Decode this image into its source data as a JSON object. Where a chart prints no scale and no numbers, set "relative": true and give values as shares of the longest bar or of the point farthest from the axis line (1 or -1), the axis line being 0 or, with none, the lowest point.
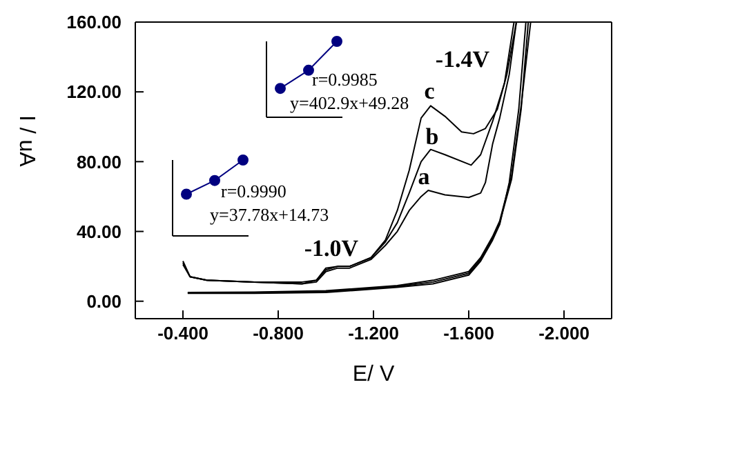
{
  "chart_data": [
    {
      "type": "line",
      "xlabel": "E/  V",
      "ylabel": "I  /   uA",
      "xlim": [
        -0.2,
        -2.2
      ],
      "ylim": [
        -10,
        160
      ],
      "xticks": [
        {
          "value": -0.4,
          "label": "-0.400"
        },
        {
          "value": -0.8,
          "label": "-0.800"
        },
        {
          "value": -1.2,
          "label": "-1.200"
        },
        {
          "value": -1.6,
          "label": "-1.600"
        },
        {
          "value": -2.0,
          "label": "-2.000"
        }
      ],
      "yticks": [
        {
          "value": 0,
          "label": "0.00"
        },
        {
          "value": 40,
          "label": "40.00"
        },
        {
          "value": 80,
          "label": "80.00"
        },
        {
          "value": 120,
          "label": "120.00"
        },
        {
          "value": 160,
          "label": "160.00"
        }
      ],
      "legend": false,
      "marker": "none",
      "line_style": "solid",
      "series": [
        {
          "color": "#000000",
          "x": [
            -0.4,
            -0.43,
            -0.5,
            -0.7,
            -0.9,
            -0.96,
            -1.0,
            -1.05,
            -1.1,
            -1.19,
            -1.25,
            -1.3,
            -1.35,
            -1.4,
            -1.43,
            -1.5,
            -1.6,
            -1.65,
            -1.67,
            -1.7,
            -1.73,
            -1.77,
            -1.8,
            -1.84,
            -1.81,
            -1.77,
            -1.73,
            -1.7,
            -1.65,
            -1.6,
            -1.45,
            -1.3,
            -1.0,
            -0.7,
            -0.42
          ],
          "values": [
            21,
            14,
            12,
            11,
            10,
            11,
            17,
            19,
            19,
            24,
            32,
            40,
            52,
            60,
            63.5,
            61,
            59.5,
            62,
            68,
            90,
            105,
            130,
            160,
            160,
            110,
            68,
            44,
            35,
            23,
            15,
            10,
            8,
            5,
            4.5,
            4.5
          ]
        },
        {
          "color": "#000000",
          "x": [
            -0.4,
            -0.43,
            -0.5,
            -0.7,
            -0.9,
            -0.96,
            -1.0,
            -1.05,
            -1.1,
            -1.19,
            -1.25,
            -1.3,
            -1.35,
            -1.4,
            -1.44,
            -1.5,
            -1.61,
            -1.65,
            -1.7,
            -1.75,
            -1.79,
            -1.85,
            -1.82,
            -1.78,
            -1.73,
            -1.7,
            -1.65,
            -1.6,
            -1.45,
            -1.3,
            -1.0,
            -0.7,
            -0.42
          ],
          "values": [
            22,
            14,
            12,
            11,
            10,
            12,
            18,
            20,
            20,
            25,
            34,
            45,
            62,
            80,
            87,
            84,
            78,
            84,
            103,
            125,
            160,
            160,
            110,
            70,
            45,
            36,
            24,
            16,
            11,
            8.5,
            5.5,
            5,
            4.7
          ]
        },
        {
          "color": "#000000",
          "x": [
            -0.4,
            -0.43,
            -0.5,
            -0.7,
            -0.9,
            -0.96,
            -1.0,
            -1.05,
            -1.1,
            -1.19,
            -1.25,
            -1.3,
            -1.35,
            -1.4,
            -1.44,
            -1.5,
            -1.57,
            -1.62,
            -1.67,
            -1.72,
            -1.76,
            -1.8,
            -1.86,
            -1.82,
            -1.78,
            -1.73,
            -1.7,
            -1.65,
            -1.6,
            -1.45,
            -1.3,
            -1.0,
            -0.7,
            -0.42
          ],
          "values": [
            23,
            14,
            12,
            11,
            11,
            12,
            19,
            20,
            20,
            25,
            35,
            52,
            75,
            105,
            112,
            106,
            97,
            96,
            99,
            110,
            130,
            160,
            160,
            112,
            72,
            46,
            37,
            25,
            17,
            12,
            9,
            6,
            5.2,
            5
          ]
        }
      ],
      "annotations": [
        "-1.4V",
        "-1.0V",
        "a",
        "b",
        "c"
      ]
    },
    {
      "type": "line",
      "relative": true,
      "categories": [
        null,
        null,
        null
      ],
      "marker": "circle",
      "series": [
        {
          "color": "#000080",
          "values": [
            0.38,
            0.62,
            1
          ]
        }
      ],
      "annotations": [
        "r=0.9985",
        "y=402.9x+49.28"
      ]
    },
    {
      "type": "line",
      "relative": true,
      "categories": [
        null,
        null,
        null
      ],
      "marker": "circle",
      "series": [
        {
          "color": "#000080",
          "values": [
            0.55,
            0.73,
            1
          ]
        }
      ],
      "annotations": [
        "r=0.9990",
        "y=37.78x+14.73"
      ]
    }
  ]
}
